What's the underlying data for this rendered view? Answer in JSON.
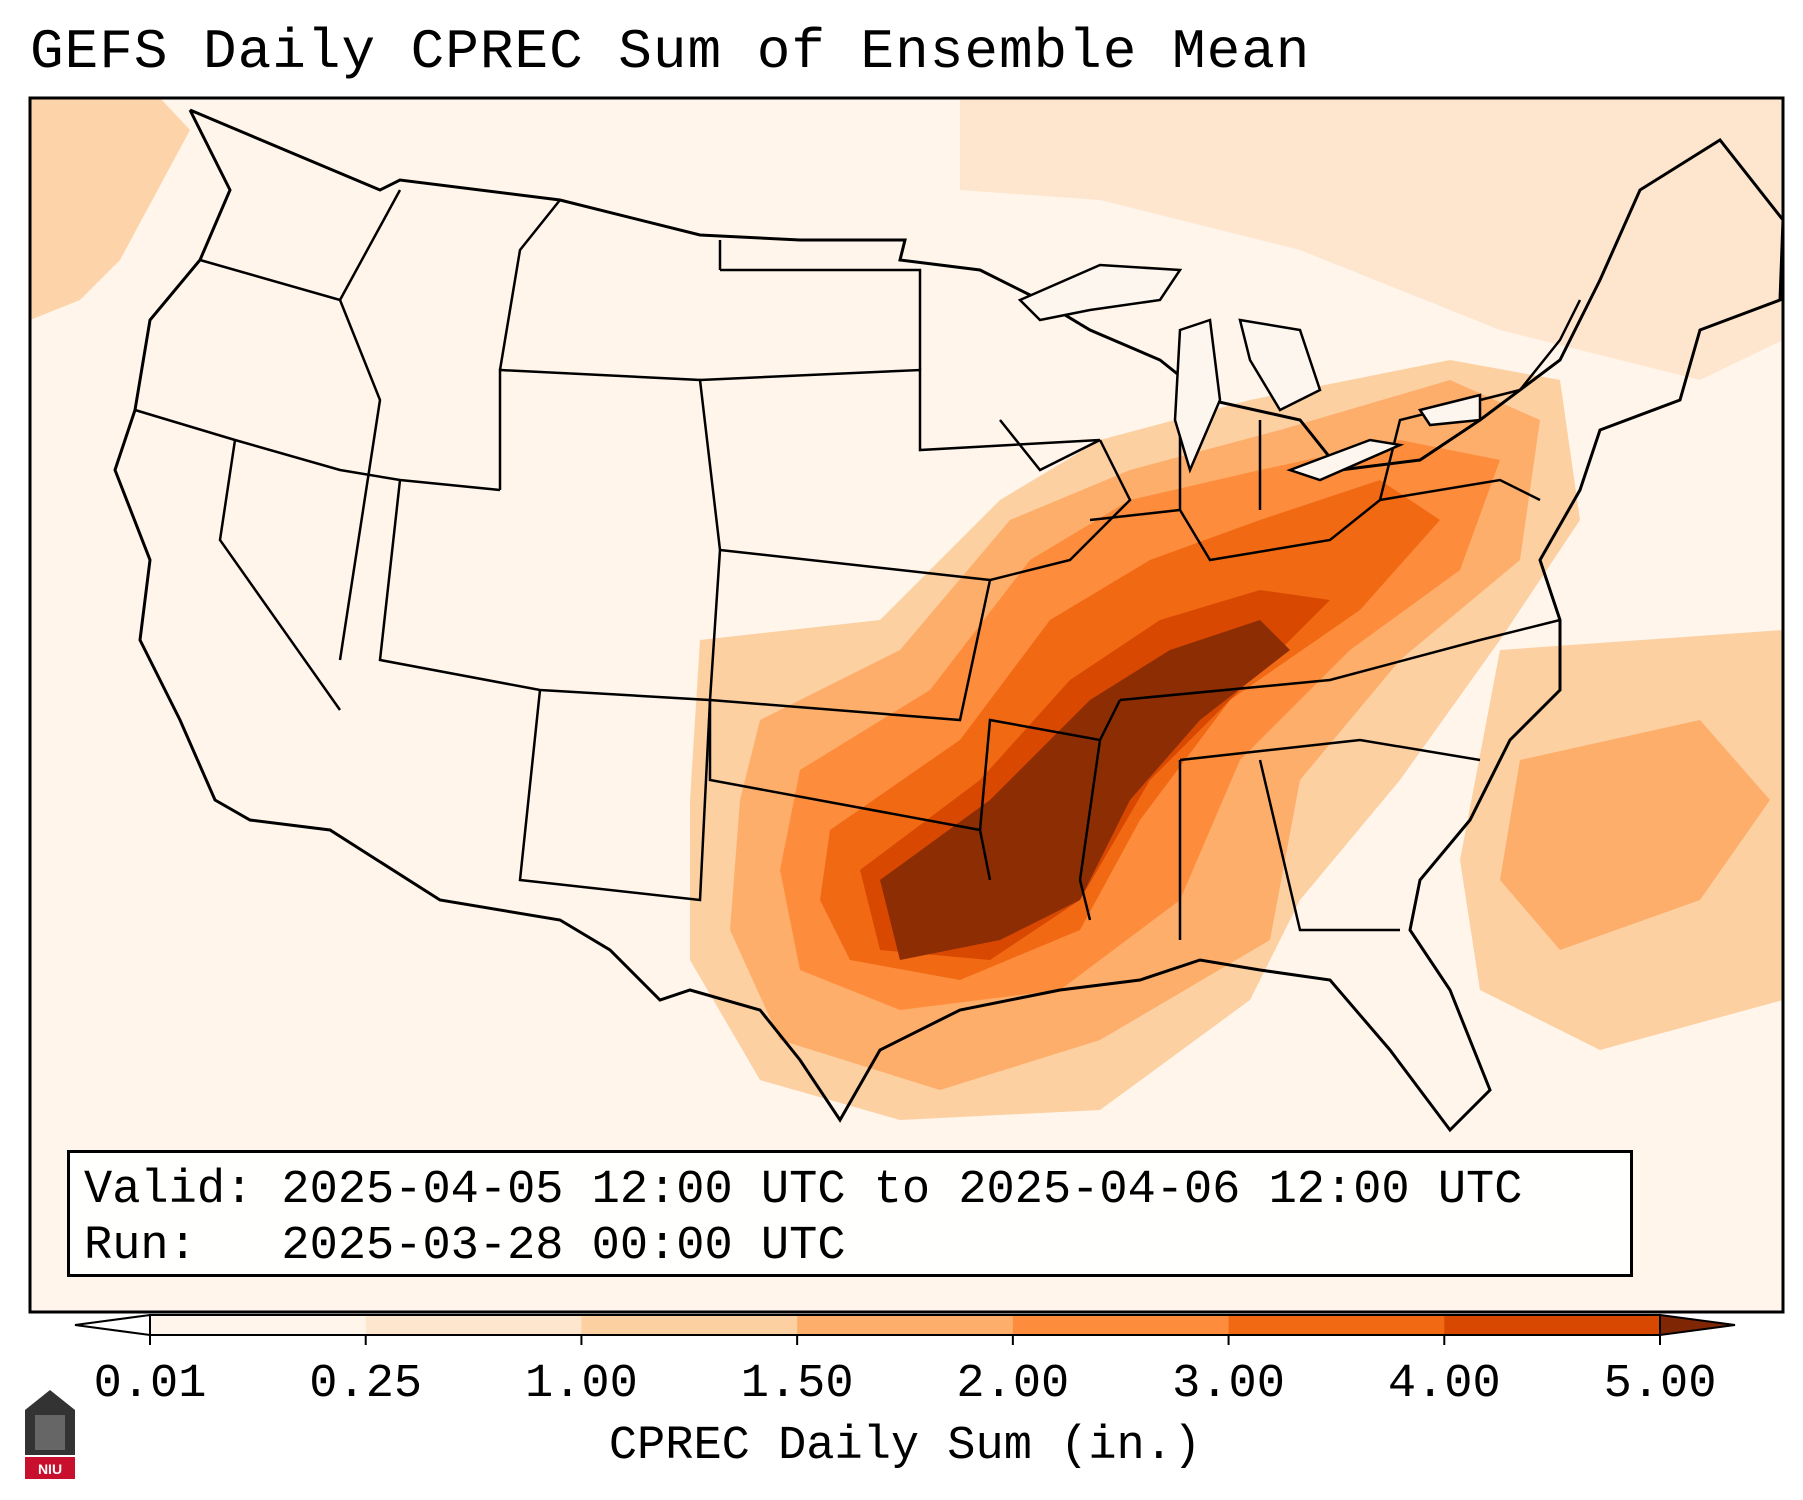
{
  "title": "GEFS Daily CPREC Sum of Ensemble Mean",
  "info": {
    "valid_line": "Valid: 2025-04-05 12:00 UTC to 2025-04-06 12:00 UTC",
    "run_line": "Run:   2025-03-28 00:00 UTC"
  },
  "colorbar": {
    "label": "CPREC Daily Sum (in.)",
    "ticks": [
      "0.01",
      "0.25",
      "1.00",
      "1.50",
      "2.00",
      "3.00",
      "4.00",
      "5.00"
    ],
    "colors": [
      "#fff5eb",
      "#fee6ce",
      "#fdd0a2",
      "#fdae6b",
      "#fd8d3c",
      "#f16913",
      "#d94801",
      "#8c2d04"
    ],
    "under_color": "#ffffff",
    "over_color": "#7f2704"
  },
  "map_colors": {
    "land_low": "#fef0e1",
    "water_low": "#fdf6ef",
    "borders": "#000000"
  },
  "logo": {
    "text": "NIU",
    "color": "#c8102e"
  }
}
